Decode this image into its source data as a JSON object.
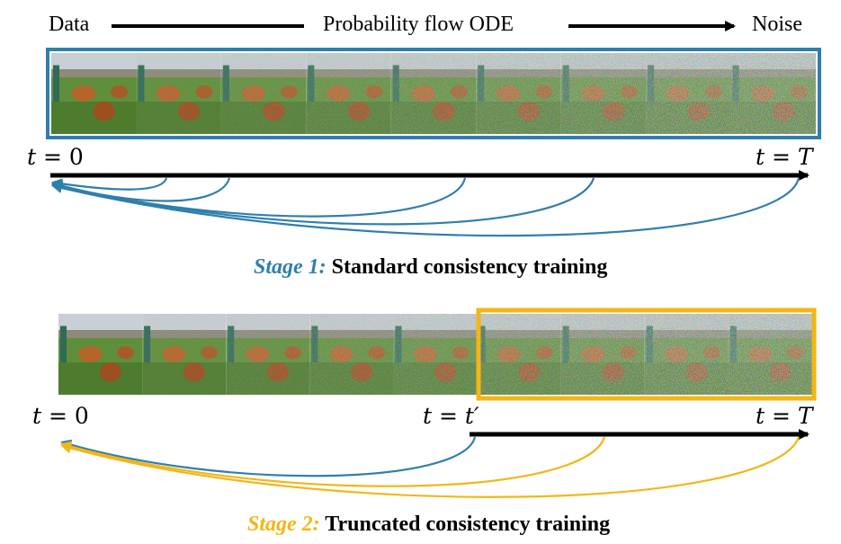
{
  "header": {
    "left_label": "Data",
    "center_label": "Probability flow ODE",
    "right_label": "Noise"
  },
  "stage1": {
    "t_start": {
      "var": "t",
      "eq": " = ",
      "val": "0"
    },
    "t_end": {
      "var": "t",
      "eq": " = ",
      "val": "T"
    },
    "caption": {
      "stage_label": "Stage 1:",
      "text": "Standard consistency training"
    },
    "frame_color": "#2f7fad",
    "arrow_color": "#2f7fad",
    "image_strip": {
      "frames": 9,
      "noise_levels": [
        0.0,
        0.18,
        0.32,
        0.45,
        0.56,
        0.68,
        0.8,
        0.92,
        1.0
      ]
    }
  },
  "stage2": {
    "t_start": {
      "var": "t",
      "eq": " = ",
      "val": "0"
    },
    "t_mid": {
      "var": "t",
      "eq": " = ",
      "val": "t′"
    },
    "t_end": {
      "var": "t",
      "eq": " = ",
      "val": "T"
    },
    "caption": {
      "stage_label": "Stage 2:",
      "text": "Truncated consistency training"
    },
    "frame_color": "#f2b616",
    "blue_arrow_color": "#2f7fad",
    "yellow_arrow_color": "#f2b616",
    "image_strip": {
      "frames": 9,
      "noise_levels": [
        0.0,
        0.18,
        0.32,
        0.45,
        0.56,
        0.68,
        0.8,
        0.92,
        1.0
      ]
    }
  },
  "colors": {
    "axis": "#000000",
    "stage1_accent": "#2f7fad",
    "stage2_accent": "#f2b616"
  }
}
